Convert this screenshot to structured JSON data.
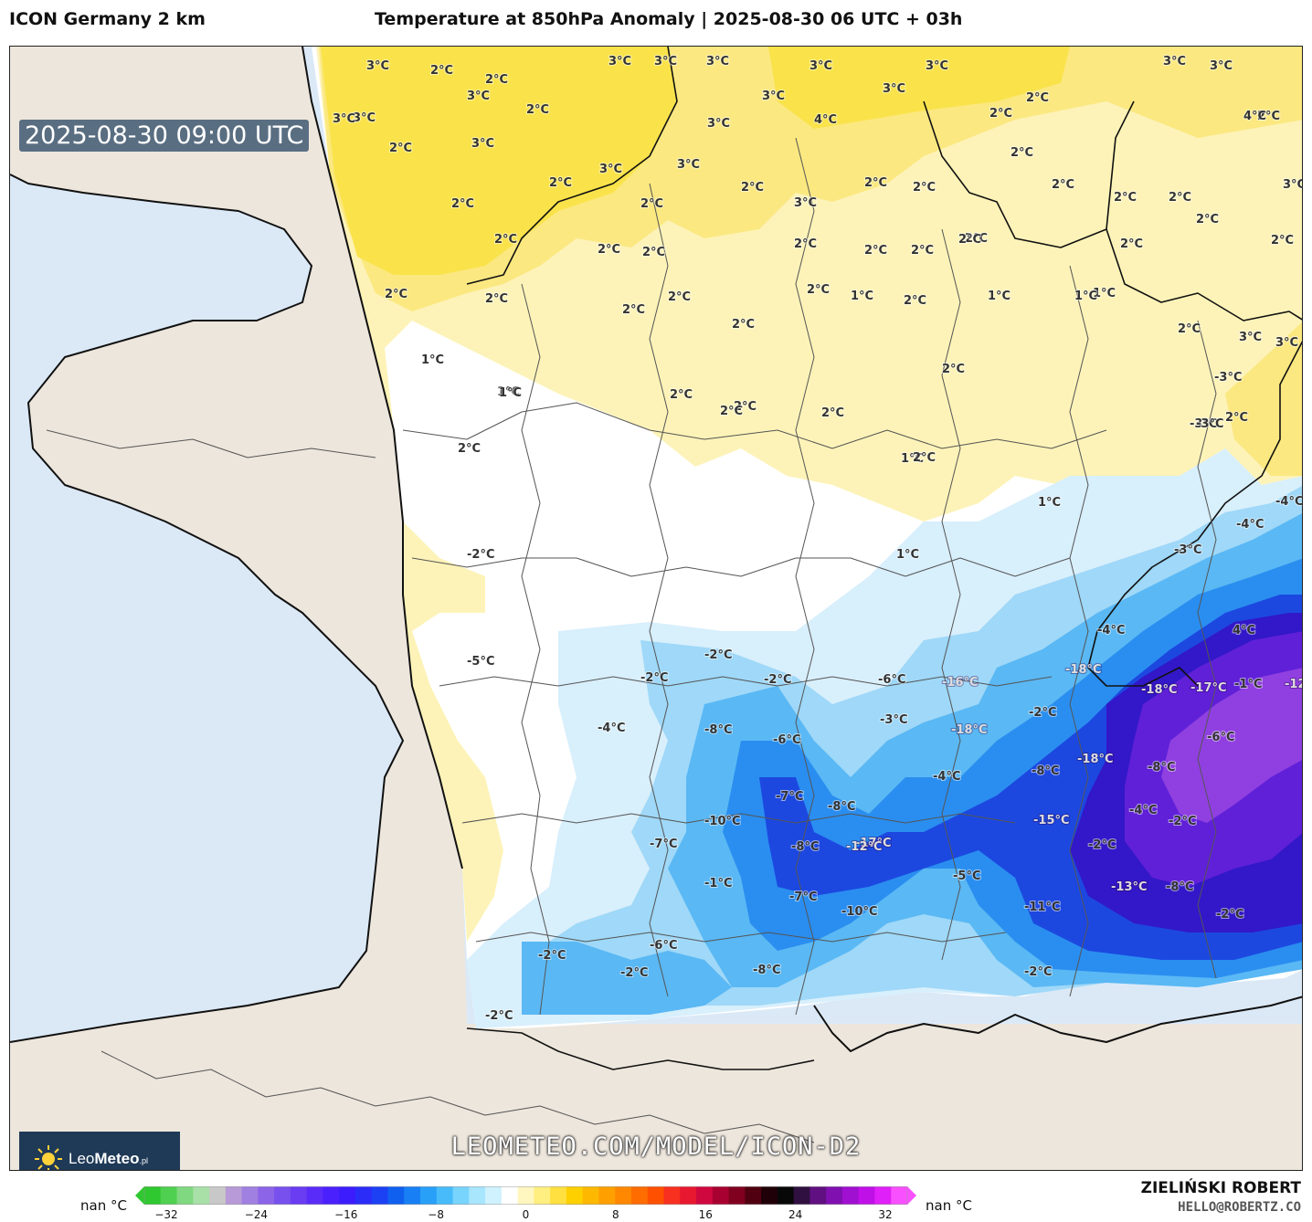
{
  "header": {
    "model": "ICON Germany 2 km",
    "title": "Temperature at 850hPa Anomaly | 2025-08-30 06 UTC + 03h"
  },
  "valid_time": "2025-08-30 09:00 UTC",
  "logo": {
    "brand_light": "Leo",
    "brand_bold": "Meteo",
    "suffix": ".pl"
  },
  "watermark_url": "LEOMETEO.COM/MODEL/ICON-D2",
  "credit": {
    "author": "ZIELIŃSKI ROBERT",
    "email": "HELLO@ROBERTZ.CO"
  },
  "colorbar": {
    "left_label": "nan °C",
    "right_label": "nan °C",
    "ticks": [
      "−32",
      "−24",
      "−16",
      "−8",
      "0",
      "8",
      "16",
      "24",
      "32"
    ],
    "min": -32,
    "max": 32,
    "colors": [
      "#30c830",
      "#50d050",
      "#80d880",
      "#a8e0a8",
      "#c8c8c8",
      "#b89ad8",
      "#a080e0",
      "#8c64e8",
      "#7850ee",
      "#6a3cf2",
      "#5a2cf8",
      "#4a20fc",
      "#3c1cfc",
      "#2c2cf8",
      "#1c40f4",
      "#1060f0",
      "#1880f4",
      "#28a0f8",
      "#48bcfa",
      "#78d4fc",
      "#a8e6fe",
      "#d0f2ff",
      "#ffffff",
      "#fff6c0",
      "#ffee80",
      "#ffe040",
      "#ffd000",
      "#ffb800",
      "#ffa000",
      "#ff8800",
      "#ff6c00",
      "#ff5000",
      "#f83020",
      "#e81830",
      "#d00840",
      "#a80030",
      "#800020",
      "#500010",
      "#200008",
      "#080808",
      "#301040",
      "#601080",
      "#8010b0",
      "#a010d0",
      "#c010e8",
      "#e020f8",
      "#f850ff"
    ],
    "background": "#ffffff"
  },
  "map_colors": {
    "sea": "#dbe9f7",
    "land_outside": "#ede6dc",
    "no_anomaly": "#ffffff",
    "warm_1": "#fdf3b8",
    "warm_2": "#fbe880",
    "warm_3": "#fae34a",
    "cold_1": "#d8effc",
    "cold_2": "#9fd8f8",
    "cold_3": "#5ab8f4",
    "cold_4": "#2a8ef0",
    "cold_5": "#1c48e0",
    "cold_6": "#3218c8",
    "cold_7": "#6020d8",
    "cold_8": "#9040e0"
  },
  "labels": [
    "3°C",
    "2°C",
    "2°C",
    "3°C",
    "3°C",
    "3°C",
    "3°C",
    "3°C",
    "3°C",
    "3°C",
    "3°C",
    "3°C",
    "3°C",
    "3°C",
    "2°C",
    "2°C",
    "3°C",
    "2°C",
    "3°C",
    "3°C",
    "2°C",
    "3°C",
    "4°C",
    "2°C",
    "2°C",
    "2°C",
    "4°C",
    "3°C",
    "2°C",
    "2°C",
    "2°C",
    "3°C",
    "2°C",
    "2°C",
    "2°C",
    "2°C",
    "2°C",
    "2°C",
    "2°C",
    "2°C",
    "2°C",
    "2°C",
    "2°C",
    "3°C",
    "2°C",
    "2°C",
    "2°C",
    "2°C",
    "2°C",
    "2°C",
    "2°C",
    "2°C",
    "2°C",
    "2°C",
    "1°C",
    "2°C",
    "1°C",
    "1°C",
    "1°C",
    "2°C",
    "2°C",
    "3°C",
    "3°C",
    "1°C",
    "1°C",
    "2°C",
    "2°C",
    "2°C",
    "2°C",
    "-3°C",
    "2°C",
    "1°C",
    "1°C",
    "2°C",
    "2°C",
    "1°C",
    "2°C",
    "-3°C",
    "-3°C",
    "-4°C",
    "-4°C",
    "-3°C",
    "1°C",
    "-2°C",
    "-2°C",
    "-2°C",
    "-4°C",
    "-2°C",
    "-6°C",
    "-16°C",
    "4°C",
    "-5°C",
    "-18°C",
    "-17°C",
    "-12°C",
    "-18°C",
    "-1°C",
    "-2°C",
    "-4°C",
    "-8°C",
    "-6°C",
    "-3°C",
    "-18°C",
    "-6°C",
    "-4°C",
    "-8°C",
    "-18°C",
    "-8°C",
    "-7°C",
    "-8°C",
    "-17°C",
    "-4°C",
    "-10°C",
    "-15°C",
    "-2°C",
    "-7°C",
    "-8°C",
    "-12°C",
    "-2°C",
    "-1°C",
    "-5°C",
    "-7°C",
    "-10°C",
    "-13°C",
    "-8°C",
    "-11°C",
    "-2°C",
    "-2°C",
    "-6°C",
    "-8°C",
    "-2°C",
    "-2°C",
    "-2°C"
  ]
}
